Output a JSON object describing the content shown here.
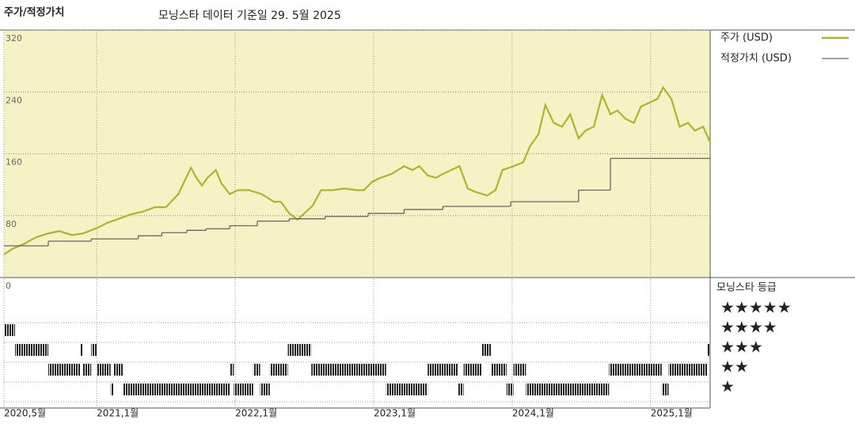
{
  "chart_data": {
    "type": "line",
    "title": "주가/적정가치",
    "subtitle": "모닝스타 데이터 기준일 29. 5월 2025",
    "xlim": [
      2020.33,
      2025.43
    ],
    "xticks": [
      {
        "value": 2020.33,
        "label": "2020,5월"
      },
      {
        "value": 2021,
        "label": "2021,1월"
      },
      {
        "value": 2022,
        "label": "2022,1월"
      },
      {
        "value": 2023,
        "label": "2023,1월"
      },
      {
        "value": 2024,
        "label": "2024,1월"
      },
      {
        "value": 2025,
        "label": "2025,1월"
      }
    ],
    "ylim": [
      0,
      320
    ],
    "yticks": [
      0,
      80,
      160,
      240,
      320
    ],
    "grid": true,
    "series": [
      {
        "name": "주가 (USD)",
        "color": "#a9b72a",
        "step": false,
        "x": [
          2020.33,
          2020.39,
          2020.48,
          2020.56,
          2020.65,
          2020.73,
          2020.82,
          2020.9,
          2021.0,
          2021.08,
          2021.16,
          2021.25,
          2021.33,
          2021.42,
          2021.5,
          2021.59,
          2021.68,
          2021.72,
          2021.76,
          2021.8,
          2021.86,
          2021.9,
          2021.96,
          2022.02,
          2022.1,
          2022.19,
          2022.28,
          2022.33,
          2022.39,
          2022.45,
          2022.5,
          2022.56,
          2022.62,
          2022.7,
          2022.79,
          2022.88,
          2022.93,
          2022.99,
          2023.05,
          2023.13,
          2023.22,
          2023.28,
          2023.33,
          2023.39,
          2023.45,
          2023.5,
          2023.56,
          2023.62,
          2023.68,
          2023.73,
          2023.82,
          2023.88,
          2023.93,
          2024.01,
          2024.08,
          2024.13,
          2024.19,
          2024.24,
          2024.3,
          2024.36,
          2024.42,
          2024.48,
          2024.53,
          2024.59,
          2024.65,
          2024.71,
          2024.76,
          2024.82,
          2024.88,
          2024.93,
          2024.99,
          2025.05,
          2025.09,
          2025.15,
          2025.21,
          2025.27,
          2025.32,
          2025.38,
          2025.43
        ],
        "values": [
          30,
          37,
          44,
          52,
          57,
          60,
          55,
          57,
          64,
          71,
          76,
          82,
          85,
          91,
          91,
          108,
          142,
          129,
          119,
          129,
          139,
          122,
          108,
          113,
          113,
          108,
          98,
          98,
          83,
          75,
          83,
          93,
          113,
          113,
          115,
          113,
          113,
          124,
          129,
          134,
          144,
          139,
          144,
          132,
          129,
          134,
          139,
          144,
          115,
          111,
          106,
          113,
          139,
          144,
          149,
          170,
          185,
          223,
          200,
          195,
          211,
          180,
          190,
          195,
          236,
          211,
          216,
          205,
          200,
          221,
          226,
          231,
          246,
          231,
          195,
          200,
          190,
          195,
          175
        ]
      },
      {
        "name": "적정가치 (USD)",
        "color": "#666666",
        "step": true,
        "x": [
          2020.33,
          2020.65,
          2020.96,
          2021.3,
          2021.47,
          2021.65,
          2021.79,
          2021.96,
          2022.16,
          2022.39,
          2022.65,
          2022.96,
          2023.22,
          2023.5,
          2023.99,
          2024.48,
          2024.71
        ],
        "values": [
          41,
          47,
          50,
          54,
          58,
          61,
          63,
          67,
          73,
          76,
          79,
          83,
          88,
          92,
          98,
          113,
          154
        ]
      }
    ],
    "rating_title": "모닝스타 등급",
    "rating_labels": [
      "★★★★★",
      "★★★★",
      "★★★",
      "★★",
      "★"
    ],
    "rating_periods": [
      {
        "stars": 4,
        "start": 2020.33,
        "end": 2020.41
      },
      {
        "stars": 3,
        "start": 2020.41,
        "end": 2020.65
      },
      {
        "stars": 2,
        "start": 2020.65,
        "end": 2020.88
      },
      {
        "stars": 3,
        "start": 2020.88,
        "end": 2020.9
      },
      {
        "stars": 2,
        "start": 2020.9,
        "end": 2020.96
      },
      {
        "stars": 3,
        "start": 2020.96,
        "end": 2021.0
      },
      {
        "stars": 2,
        "start": 2021.0,
        "end": 2021.1
      },
      {
        "stars": 1,
        "start": 2021.1,
        "end": 2021.12
      },
      {
        "stars": 2,
        "start": 2021.12,
        "end": 2021.19
      },
      {
        "stars": 1,
        "start": 2021.19,
        "end": 2021.96
      },
      {
        "stars": 2,
        "start": 2021.96,
        "end": 2021.99
      },
      {
        "stars": 1,
        "start": 2021.99,
        "end": 2022.13
      },
      {
        "stars": 2,
        "start": 2022.13,
        "end": 2022.18
      },
      {
        "stars": 1,
        "start": 2022.18,
        "end": 2022.25
      },
      {
        "stars": 2,
        "start": 2022.25,
        "end": 2022.38
      },
      {
        "stars": 3,
        "start": 2022.38,
        "end": 2022.55
      },
      {
        "stars": 2,
        "start": 2022.55,
        "end": 2023.09
      },
      {
        "stars": 1,
        "start": 2023.09,
        "end": 2023.39
      },
      {
        "stars": 2,
        "start": 2023.39,
        "end": 2023.61
      },
      {
        "stars": 1,
        "start": 2023.61,
        "end": 2023.65
      },
      {
        "stars": 2,
        "start": 2023.65,
        "end": 2023.78
      },
      {
        "stars": 3,
        "start": 2023.78,
        "end": 2023.85
      },
      {
        "stars": 2,
        "start": 2023.85,
        "end": 2023.96
      },
      {
        "stars": 1,
        "start": 2023.96,
        "end": 2024.01
      },
      {
        "stars": 2,
        "start": 2024.01,
        "end": 2024.1
      },
      {
        "stars": 1,
        "start": 2024.1,
        "end": 2024.7
      },
      {
        "stars": 2,
        "start": 2024.7,
        "end": 2025.08
      },
      {
        "stars": 1,
        "start": 2025.08,
        "end": 2025.13
      },
      {
        "stars": 2,
        "start": 2025.13,
        "end": 2025.41
      },
      {
        "stars": 3,
        "start": 2025.41,
        "end": 2025.43
      }
    ]
  }
}
